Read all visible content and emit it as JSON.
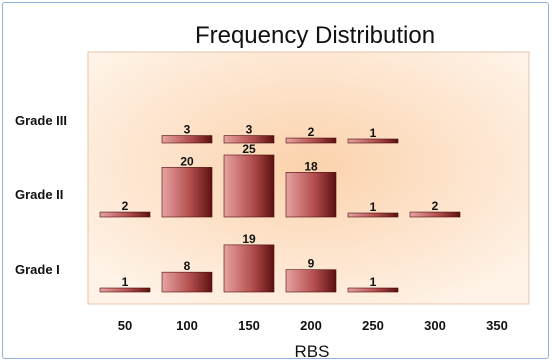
{
  "chart_data": {
    "type": "bar",
    "title": "Frequency Distribution",
    "xlabel": "RBS",
    "ylabel": "",
    "x": [
      50,
      100,
      150,
      200,
      250,
      300,
      350
    ],
    "series": [
      {
        "name": "Grade I",
        "values": [
          1,
          8,
          19,
          9,
          1,
          null,
          null
        ]
      },
      {
        "name": "Grade II",
        "values": [
          2,
          20,
          25,
          18,
          1,
          2,
          null
        ]
      },
      {
        "name": "Grade III",
        "values": [
          null,
          3,
          3,
          2,
          1,
          null,
          null
        ]
      }
    ],
    "vmax": 25,
    "grid": false,
    "legend": "none",
    "colors": {
      "bar_light": "#e7a3a3",
      "bar_mid": "#b45050",
      "bar_dark": "#5e1010",
      "plot_bg_center": "#fbd2ac",
      "plot_bg_edge": "#fff3e8",
      "frame_border": "#8fb0d8"
    }
  }
}
